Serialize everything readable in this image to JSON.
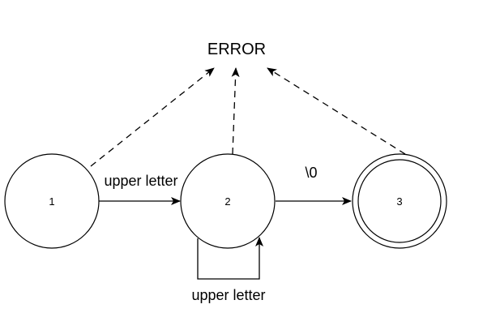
{
  "diagram": {
    "error_label": "ERROR",
    "nodes": [
      {
        "id": "1",
        "label": "1",
        "accepting": false
      },
      {
        "id": "2",
        "label": "2",
        "accepting": false
      },
      {
        "id": "3",
        "label": "3",
        "accepting": true
      }
    ],
    "edges": {
      "transition_1_2": "upper letter",
      "transition_2_3": "\\0",
      "self_loop_2": "upper letter"
    },
    "colors": {
      "stroke": "#000000",
      "background": "#ffffff"
    }
  }
}
